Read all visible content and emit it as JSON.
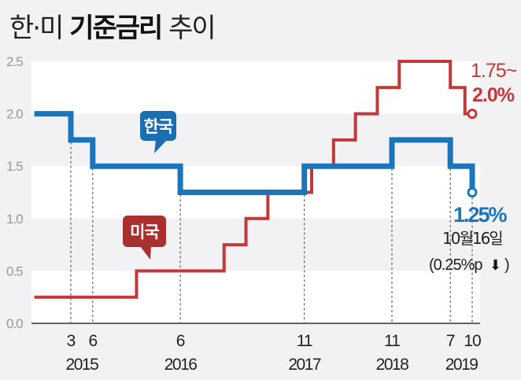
{
  "title": {
    "part1": "한·미",
    "part2": "기준금리",
    "part3": "추이"
  },
  "chart_data": {
    "type": "line",
    "step": true,
    "title": "한·미 기준금리 추이",
    "ylabel": "",
    "ylim": [
      0,
      2.5
    ],
    "yticks": [
      "0.0",
      "0.5",
      "1.0",
      "1.5",
      "2.0",
      "2.5"
    ],
    "x_unit": "months since Jan 2015",
    "xlim": [
      -3,
      57
    ],
    "xticks": [
      {
        "m": 2,
        "month": "3",
        "year": "2015"
      },
      {
        "m": 5,
        "month": "6",
        "year": ""
      },
      {
        "m": 17,
        "month": "6",
        "year": "2016"
      },
      {
        "m": 34,
        "month": "11",
        "year": "2017"
      },
      {
        "m": 46,
        "month": "11",
        "year": "2018"
      },
      {
        "m": 54,
        "month": "7",
        "year": "2019"
      },
      {
        "m": 57,
        "month": "10",
        "year": ""
      }
    ],
    "year_labels": [
      {
        "m": 3.5,
        "label": "2015"
      },
      {
        "m": 17,
        "label": "2016"
      },
      {
        "m": 34,
        "label": "2017"
      },
      {
        "m": 46,
        "label": "2018"
      },
      {
        "m": 55.5,
        "label": "2019"
      }
    ],
    "series": [
      {
        "name": "한국",
        "color": "#1b75bb",
        "steps": [
          [
            -3,
            2.0
          ],
          [
            2,
            1.75
          ],
          [
            5,
            1.5
          ],
          [
            17,
            1.25
          ],
          [
            34,
            1.5
          ],
          [
            46,
            1.75
          ],
          [
            54,
            1.5
          ],
          [
            57,
            1.25
          ]
        ],
        "end_label": "1.25%",
        "end_note": "10월16일",
        "end_note2": "(0.25%p",
        "end_arrow": "⬇",
        "end_note2_close": ")"
      },
      {
        "name": "미국",
        "color": "#c0393b",
        "steps": [
          [
            -3,
            0.25
          ],
          [
            11,
            0.5
          ],
          [
            23,
            0.75
          ],
          [
            26,
            1.0
          ],
          [
            29,
            1.25
          ],
          [
            35,
            1.5
          ],
          [
            38,
            1.75
          ],
          [
            41,
            2.0
          ],
          [
            44,
            2.25
          ],
          [
            47,
            2.5
          ],
          [
            54,
            2.25
          ],
          [
            56,
            2.0
          ],
          [
            57,
            2.0
          ]
        ],
        "end_label_line1": "1.75~",
        "end_label_line2": "2.0%"
      }
    ],
    "bubble_colors": {
      "korea": "#1b6fb0",
      "us": "#a8302f"
    }
  }
}
